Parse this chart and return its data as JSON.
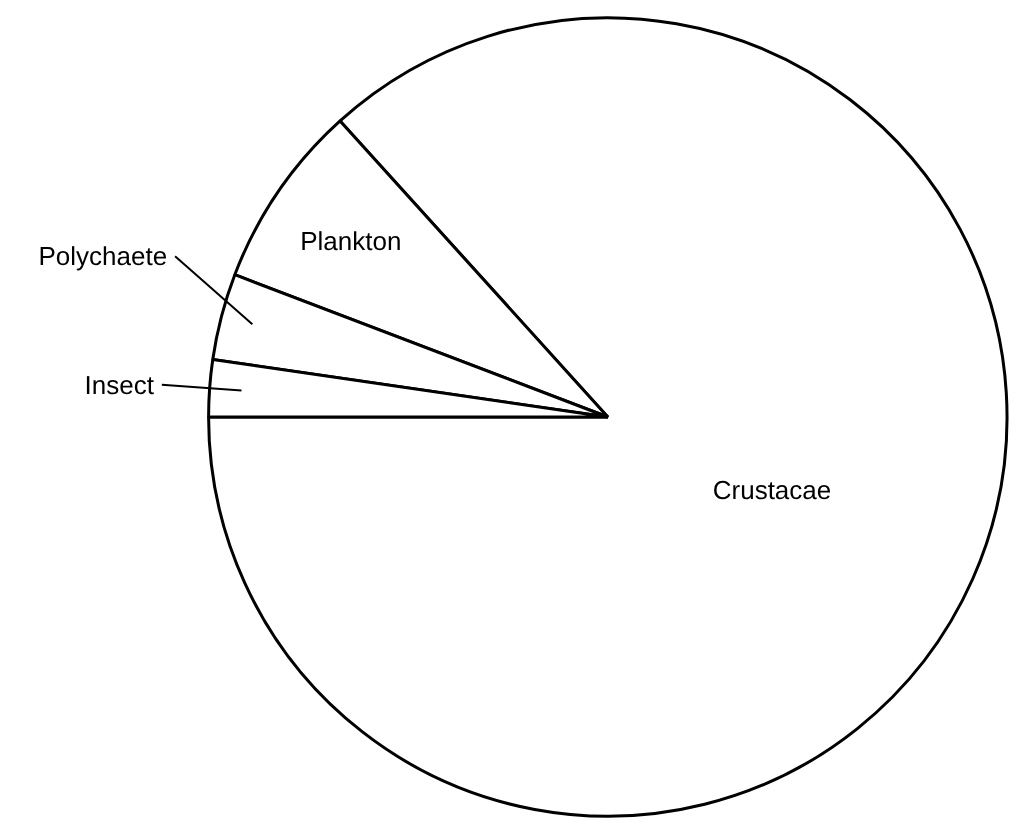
{
  "chart_data": {
    "type": "pie",
    "categories": [
      "Crustacae",
      "Plankton",
      "Polychaete",
      "Insect"
    ],
    "values": [
      86.7,
      7.5,
      3.5,
      2.3
    ],
    "colors": [
      "#ffffff",
      "#ffffff",
      "#ffffff",
      "#ffffff"
    ],
    "legend": false
  }
}
